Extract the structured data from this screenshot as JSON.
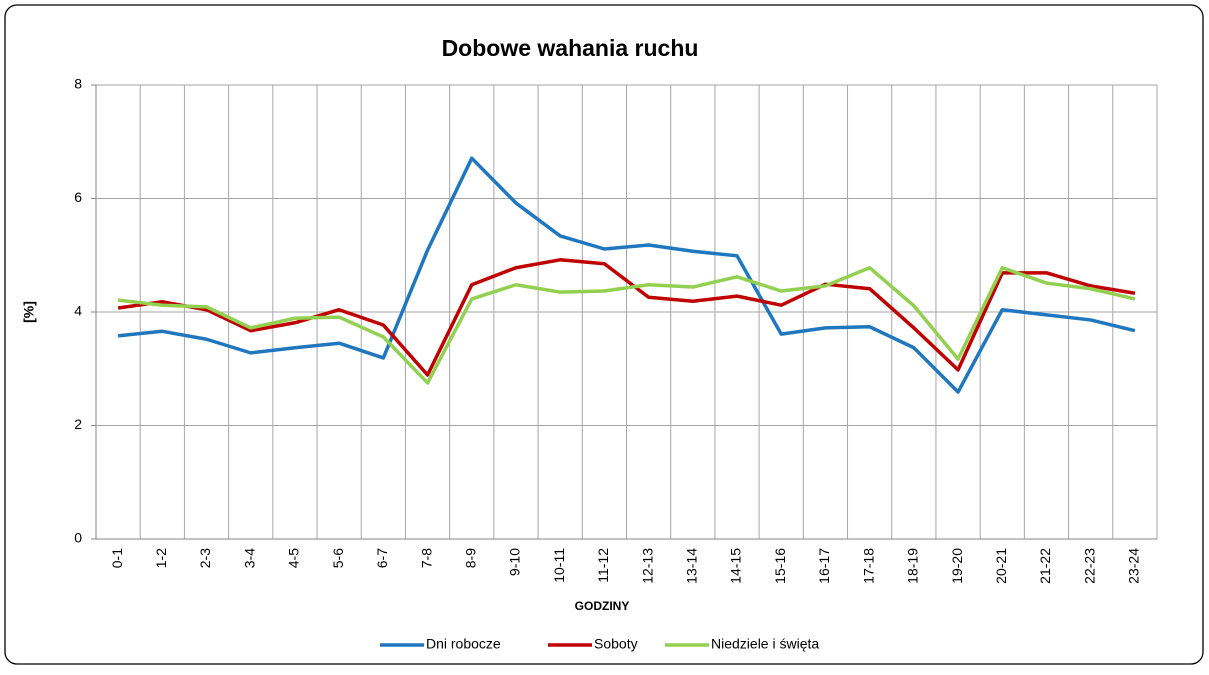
{
  "chart_data": {
    "type": "line",
    "title": "Dobowe wahania ruchu",
    "x_label": "GODZINY",
    "y_label": "[%]",
    "categories": [
      "0-1",
      "1-2",
      "2-3",
      "3-4",
      "4-5",
      "5-6",
      "6-7",
      "7-8",
      "8-9",
      "9-10",
      "10-11",
      "11-12",
      "12-13",
      "13-14",
      "14-15",
      "15-16",
      "16-17",
      "17-18",
      "18-19",
      "19-20",
      "20-21",
      "21-22",
      "22-23",
      "23-24"
    ],
    "series": [
      {
        "name": "Dni robocze",
        "color": "#1f77c0",
        "values": [
          3.58,
          3.66,
          3.52,
          3.28,
          3.37,
          3.45,
          3.19,
          5.09,
          6.71,
          5.92,
          5.34,
          5.11,
          5.18,
          5.07,
          4.99,
          3.61,
          3.72,
          3.74,
          3.37,
          2.59,
          4.04,
          3.95,
          3.86,
          3.67
        ]
      },
      {
        "name": "Soboty",
        "color": "#c00000",
        "values": [
          4.07,
          4.18,
          4.04,
          3.67,
          3.81,
          4.04,
          3.77,
          2.89,
          4.48,
          4.78,
          4.92,
          4.85,
          4.26,
          4.19,
          4.28,
          4.12,
          4.49,
          4.41,
          3.72,
          2.98,
          4.69,
          4.69,
          4.46,
          4.33
        ]
      },
      {
        "name": "Niedziele i święta",
        "color": "#92d050",
        "values": [
          4.21,
          4.12,
          4.09,
          3.72,
          3.89,
          3.91,
          3.56,
          2.75,
          4.23,
          4.48,
          4.35,
          4.37,
          4.48,
          4.44,
          4.62,
          4.37,
          4.46,
          4.78,
          4.11,
          3.17,
          4.78,
          4.51,
          4.41,
          4.23
        ]
      }
    ],
    "ylim": [
      0,
      8
    ],
    "yticks": [
      0,
      2,
      4,
      6,
      8
    ],
    "grid": true,
    "legend": "bottom"
  }
}
